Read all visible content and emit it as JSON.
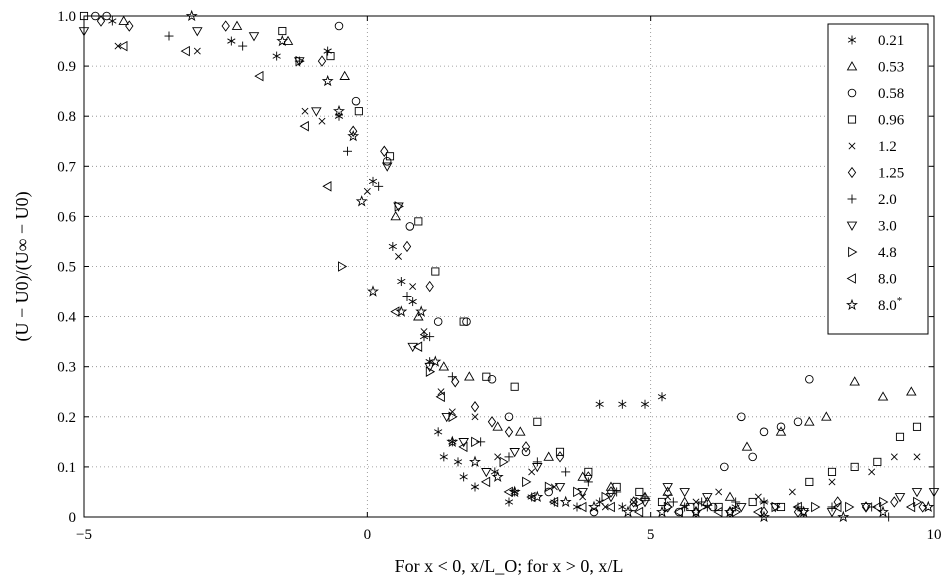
{
  "chart_data": {
    "type": "scatter",
    "xlabel": "For x < 0, x/L_O; for x > 0, x/L",
    "ylabel": "(U − U0)/(U∞ − U0)",
    "xlim": [
      -5,
      10
    ],
    "ylim": [
      0,
      1.0
    ],
    "xticks": [
      "−5",
      "0",
      "5",
      "10"
    ],
    "yticks": [
      "0",
      "0.1",
      "0.2",
      "0.3",
      "0.4",
      "0.5",
      "0.6",
      "0.7",
      "0.8",
      "0.9",
      "1.0"
    ],
    "grid": true,
    "legend_position": "top-right",
    "series": [
      {
        "name": "0.21",
        "marker": "asterisk",
        "points": [
          [
            -4.5,
            0.99
          ],
          [
            -2.4,
            0.95
          ],
          [
            -1.6,
            0.92
          ],
          [
            -0.7,
            0.93
          ],
          [
            -0.5,
            0.8
          ],
          [
            0.1,
            0.67
          ],
          [
            0.45,
            0.54
          ],
          [
            0.6,
            0.47
          ],
          [
            0.8,
            0.43
          ],
          [
            1.0,
            0.36
          ],
          [
            1.1,
            0.31
          ],
          [
            1.25,
            0.17
          ],
          [
            1.35,
            0.12
          ],
          [
            1.5,
            0.15
          ],
          [
            1.6,
            0.11
          ],
          [
            1.7,
            0.08
          ],
          [
            1.9,
            0.06
          ],
          [
            2.25,
            0.09
          ],
          [
            2.5,
            0.03
          ],
          [
            2.6,
            0.05
          ],
          [
            2.9,
            0.04
          ],
          [
            3.3,
            0.03
          ],
          [
            3.7,
            0.02
          ],
          [
            4.1,
            0.03
          ],
          [
            4.5,
            0.02
          ],
          [
            4.1,
            0.225
          ],
          [
            4.5,
            0.225
          ],
          [
            4.9,
            0.225
          ],
          [
            5.2,
            0.24
          ],
          [
            5.6,
            0.02
          ],
          [
            6.0,
            0.02
          ],
          [
            6.5,
            0.02
          ],
          [
            7.0,
            0.03
          ]
        ]
      },
      {
        "name": "0.53",
        "marker": "triangle-up",
        "points": [
          [
            -4.3,
            0.99
          ],
          [
            -2.3,
            0.98
          ],
          [
            -1.4,
            0.95
          ],
          [
            -0.4,
            0.88
          ],
          [
            0.5,
            0.6
          ],
          [
            0.9,
            0.4
          ],
          [
            1.35,
            0.3
          ],
          [
            1.8,
            0.28
          ],
          [
            2.3,
            0.18
          ],
          [
            2.7,
            0.17
          ],
          [
            3.2,
            0.12
          ],
          [
            3.8,
            0.08
          ],
          [
            4.3,
            0.06
          ],
          [
            4.9,
            0.04
          ],
          [
            5.3,
            0.05
          ],
          [
            5.6,
            0.03
          ],
          [
            6.0,
            0.03
          ],
          [
            6.4,
            0.04
          ],
          [
            6.7,
            0.14
          ],
          [
            7.3,
            0.17
          ],
          [
            7.8,
            0.19
          ],
          [
            8.1,
            0.2
          ],
          [
            8.6,
            0.27
          ],
          [
            9.1,
            0.24
          ],
          [
            9.6,
            0.25
          ]
        ]
      },
      {
        "name": "0.58",
        "marker": "circle",
        "points": [
          [
            -4.8,
            1.0
          ],
          [
            -4.6,
            1.0
          ],
          [
            -0.5,
            0.98
          ],
          [
            -0.2,
            0.83
          ],
          [
            0.35,
            0.71
          ],
          [
            0.75,
            0.58
          ],
          [
            1.25,
            0.39
          ],
          [
            1.75,
            0.39
          ],
          [
            2.2,
            0.275
          ],
          [
            2.5,
            0.2
          ],
          [
            2.8,
            0.13
          ],
          [
            3.2,
            0.05
          ],
          [
            4.0,
            0.01
          ],
          [
            4.7,
            0.02
          ],
          [
            5.5,
            0.01
          ],
          [
            6.1,
            0.02
          ],
          [
            6.3,
            0.1
          ],
          [
            6.6,
            0.2
          ],
          [
            6.8,
            0.12
          ],
          [
            7.0,
            0.17
          ],
          [
            7.3,
            0.18
          ],
          [
            7.6,
            0.19
          ],
          [
            7.8,
            0.275
          ]
        ]
      },
      {
        "name": "0.96",
        "marker": "square",
        "points": [
          [
            -5.0,
            1.0
          ],
          [
            -1.5,
            0.97
          ],
          [
            -0.65,
            0.92
          ],
          [
            -0.15,
            0.81
          ],
          [
            0.4,
            0.72
          ],
          [
            0.9,
            0.59
          ],
          [
            1.2,
            0.49
          ],
          [
            1.7,
            0.39
          ],
          [
            2.1,
            0.28
          ],
          [
            2.6,
            0.26
          ],
          [
            3.0,
            0.19
          ],
          [
            3.4,
            0.13
          ],
          [
            3.9,
            0.09
          ],
          [
            4.4,
            0.06
          ],
          [
            4.8,
            0.05
          ],
          [
            5.2,
            0.03
          ],
          [
            5.7,
            0.02
          ],
          [
            6.2,
            0.02
          ],
          [
            6.8,
            0.03
          ],
          [
            7.3,
            0.02
          ],
          [
            7.8,
            0.07
          ],
          [
            8.2,
            0.09
          ],
          [
            8.6,
            0.1
          ],
          [
            9.0,
            0.11
          ],
          [
            9.4,
            0.16
          ],
          [
            9.7,
            0.18
          ]
        ]
      },
      {
        "name": "1.2",
        "marker": "x",
        "points": [
          [
            -4.4,
            0.94
          ],
          [
            -3.0,
            0.93
          ],
          [
            -1.1,
            0.81
          ],
          [
            -0.8,
            0.79
          ],
          [
            0.0,
            0.65
          ],
          [
            0.55,
            0.52
          ],
          [
            0.8,
            0.46
          ],
          [
            1.0,
            0.37
          ],
          [
            1.3,
            0.25
          ],
          [
            1.5,
            0.21
          ],
          [
            1.9,
            0.2
          ],
          [
            2.3,
            0.12
          ],
          [
            2.9,
            0.09
          ],
          [
            3.3,
            0.06
          ],
          [
            3.8,
            0.04
          ],
          [
            4.2,
            0.02
          ],
          [
            4.7,
            0.03
          ],
          [
            5.3,
            0.04
          ],
          [
            5.8,
            0.03
          ],
          [
            6.2,
            0.05
          ],
          [
            6.9,
            0.04
          ],
          [
            7.5,
            0.05
          ],
          [
            8.2,
            0.07
          ],
          [
            8.9,
            0.09
          ],
          [
            9.3,
            0.12
          ],
          [
            9.7,
            0.12
          ]
        ]
      },
      {
        "name": "1.25",
        "marker": "diamond",
        "points": [
          [
            -4.7,
            0.99
          ],
          [
            -4.2,
            0.98
          ],
          [
            -2.5,
            0.98
          ],
          [
            -0.8,
            0.91
          ],
          [
            -0.25,
            0.77
          ],
          [
            0.3,
            0.73
          ],
          [
            0.7,
            0.54
          ],
          [
            1.1,
            0.46
          ],
          [
            1.55,
            0.27
          ],
          [
            1.9,
            0.22
          ],
          [
            2.2,
            0.19
          ],
          [
            2.5,
            0.17
          ],
          [
            2.8,
            0.14
          ],
          [
            3.4,
            0.12
          ],
          [
            3.9,
            0.08
          ],
          [
            4.3,
            0.05
          ],
          [
            4.7,
            0.03
          ],
          [
            5.3,
            0.02
          ],
          [
            5.8,
            0.01
          ],
          [
            6.4,
            0.01
          ],
          [
            7.0,
            0.01
          ],
          [
            7.6,
            0.01
          ],
          [
            8.3,
            0.03
          ],
          [
            8.8,
            0.02
          ],
          [
            9.3,
            0.03
          ],
          [
            9.8,
            0.02
          ]
        ]
      },
      {
        "name": "2.0",
        "marker": "plus",
        "points": [
          [
            -3.5,
            0.96
          ],
          [
            -2.2,
            0.94
          ],
          [
            -1.2,
            0.91
          ],
          [
            -0.35,
            0.73
          ],
          [
            0.2,
            0.66
          ],
          [
            0.7,
            0.44
          ],
          [
            1.1,
            0.36
          ],
          [
            1.5,
            0.28
          ],
          [
            2.0,
            0.15
          ],
          [
            2.5,
            0.12
          ],
          [
            3.0,
            0.11
          ],
          [
            3.5,
            0.09
          ],
          [
            3.9,
            0.07
          ],
          [
            4.4,
            0.05
          ],
          [
            4.9,
            0.04
          ],
          [
            5.4,
            0.03
          ],
          [
            5.9,
            0.03
          ],
          [
            6.5,
            0.03
          ],
          [
            7.0,
            0.03
          ],
          [
            7.6,
            0.02
          ],
          [
            8.2,
            0.02
          ],
          [
            8.9,
            0.02
          ],
          [
            9.2,
            0.0
          ]
        ]
      },
      {
        "name": "3.0",
        "marker": "triangle-down",
        "points": [
          [
            -5.0,
            0.97
          ],
          [
            -3.0,
            0.97
          ],
          [
            -2.0,
            0.96
          ],
          [
            -1.2,
            0.91
          ],
          [
            -0.9,
            0.81
          ],
          [
            0.35,
            0.7
          ],
          [
            0.55,
            0.62
          ],
          [
            0.8,
            0.34
          ],
          [
            1.1,
            0.3
          ],
          [
            1.4,
            0.2
          ],
          [
            1.7,
            0.15
          ],
          [
            2.1,
            0.09
          ],
          [
            2.6,
            0.13
          ],
          [
            3.0,
            0.1
          ],
          [
            3.4,
            0.06
          ],
          [
            3.8,
            0.05
          ],
          [
            4.3,
            0.04
          ],
          [
            4.9,
            0.03
          ],
          [
            5.3,
            0.06
          ],
          [
            5.6,
            0.05
          ],
          [
            6.0,
            0.04
          ],
          [
            6.6,
            0.02
          ],
          [
            7.2,
            0.02
          ],
          [
            7.7,
            0.01
          ],
          [
            8.2,
            0.01
          ],
          [
            8.8,
            0.02
          ],
          [
            9.4,
            0.04
          ],
          [
            9.7,
            0.05
          ],
          [
            10.0,
            0.05
          ]
        ]
      },
      {
        "name": "4.8",
        "marker": "triangle-right",
        "points": [
          [
            -1.2,
            0.91
          ],
          [
            -0.45,
            0.5
          ],
          [
            0.55,
            0.62
          ],
          [
            1.1,
            0.29
          ],
          [
            1.5,
            0.2
          ],
          [
            1.9,
            0.15
          ],
          [
            2.4,
            0.11
          ],
          [
            2.8,
            0.07
          ],
          [
            3.2,
            0.06
          ],
          [
            3.7,
            0.05
          ],
          [
            4.2,
            0.04
          ],
          [
            4.8,
            0.03
          ],
          [
            5.3,
            0.02
          ],
          [
            5.9,
            0.02
          ],
          [
            6.5,
            0.01
          ],
          [
            7.2,
            0.02
          ],
          [
            7.9,
            0.02
          ],
          [
            8.5,
            0.02
          ],
          [
            9.1,
            0.03
          ],
          [
            9.7,
            0.03
          ]
        ]
      },
      {
        "name": "8.0",
        "marker": "triangle-left",
        "points": [
          [
            -4.3,
            0.94
          ],
          [
            -3.2,
            0.93
          ],
          [
            -1.9,
            0.88
          ],
          [
            -1.1,
            0.78
          ],
          [
            -0.7,
            0.66
          ],
          [
            0.5,
            0.41
          ],
          [
            0.9,
            0.34
          ],
          [
            1.3,
            0.24
          ],
          [
            1.7,
            0.14
          ],
          [
            2.1,
            0.07
          ],
          [
            2.5,
            0.05
          ],
          [
            2.9,
            0.04
          ],
          [
            3.3,
            0.03
          ],
          [
            3.8,
            0.02
          ],
          [
            4.3,
            0.02
          ],
          [
            4.8,
            0.01
          ],
          [
            5.5,
            0.01
          ],
          [
            6.2,
            0.01
          ],
          [
            6.9,
            0.01
          ],
          [
            7.6,
            0.02
          ],
          [
            8.3,
            0.02
          ],
          [
            9.0,
            0.02
          ],
          [
            9.6,
            0.02
          ]
        ]
      },
      {
        "name": "8.0*",
        "marker": "star",
        "points": [
          [
            -3.1,
            1.0
          ],
          [
            -1.5,
            0.95
          ],
          [
            -0.7,
            0.87
          ],
          [
            -0.5,
            0.81
          ],
          [
            -0.25,
            0.76
          ],
          [
            -0.1,
            0.63
          ],
          [
            0.1,
            0.45
          ],
          [
            0.6,
            0.41
          ],
          [
            0.95,
            0.41
          ],
          [
            1.2,
            0.31
          ],
          [
            1.5,
            0.15
          ],
          [
            1.9,
            0.11
          ],
          [
            2.3,
            0.08
          ],
          [
            2.6,
            0.05
          ],
          [
            3.0,
            0.04
          ],
          [
            3.5,
            0.03
          ],
          [
            4.0,
            0.02
          ],
          [
            4.6,
            0.01
          ],
          [
            5.2,
            0.01
          ],
          [
            5.8,
            0.01
          ],
          [
            6.4,
            0.01
          ],
          [
            7.0,
            0.0
          ],
          [
            7.7,
            0.01
          ],
          [
            8.4,
            0.0
          ],
          [
            9.1,
            0.01
          ],
          [
            9.9,
            0.02
          ]
        ]
      }
    ]
  }
}
